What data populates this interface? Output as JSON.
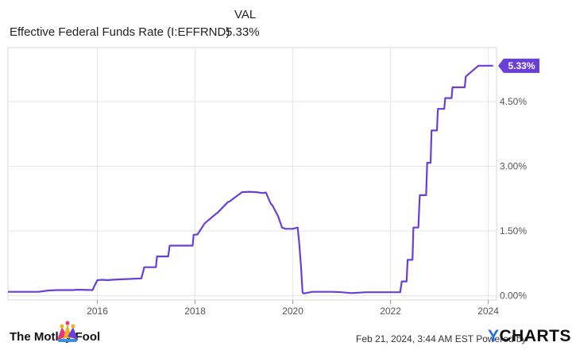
{
  "header": {
    "column_label": "VAL",
    "series_name": "Effective Federal Funds Rate (I:EFFRND)",
    "series_value": "5.33%"
  },
  "footer": {
    "brand": "The Motley Fool",
    "timestamp": "Feb 21, 2024, 3:44 AM EST Powered by",
    "provider": "CHARTS",
    "provider_mark": "Y"
  },
  "colors": {
    "line": "#6a3fd8",
    "badge": "#6a3fd8",
    "grid": "#e6e6e6",
    "plot_border": "#d9d9d9"
  },
  "chart_data": {
    "type": "line",
    "x_tick_labels": [
      "2016",
      "2018",
      "2020",
      "2022",
      "2024"
    ],
    "y_tick_labels": [
      "0.00%",
      "1.50%",
      "3.00%",
      "4.50%"
    ],
    "end_label": "5.33%",
    "xlim": [
      2014.17,
      2024.17
    ],
    "ylim": [
      -0.1,
      5.75
    ],
    "grid": true,
    "series": [
      {
        "name": "Effective Federal Funds Rate (I:EFFRND)",
        "x": [
          2014.17,
          2014.6,
          2014.8,
          2015.0,
          2015.2,
          2015.5,
          2015.6,
          2015.9,
          2016.0,
          2016.1,
          2016.2,
          2016.3,
          2016.5,
          2016.7,
          2016.9,
          2016.96,
          2017.0,
          2017.2,
          2017.22,
          2017.45,
          2017.48,
          2017.75,
          2017.8,
          2017.95,
          2017.97,
          2018.05,
          2018.2,
          2018.22,
          2018.43,
          2018.45,
          2018.67,
          2018.7,
          2018.96,
          2018.98,
          2019.1,
          2019.25,
          2019.38,
          2019.45,
          2019.55,
          2019.58,
          2019.7,
          2019.78,
          2019.85,
          2020.0,
          2020.1,
          2020.13,
          2020.17,
          2020.2,
          2020.22,
          2020.4,
          2020.8,
          2021.0,
          2021.2,
          2021.5,
          2021.8,
          2022.0,
          2022.2,
          2022.23,
          2022.33,
          2022.35,
          2022.45,
          2022.47,
          2022.57,
          2022.6,
          2022.73,
          2022.75,
          2022.82,
          2022.84,
          2022.95,
          2022.97,
          2023.1,
          2023.12,
          2023.25,
          2023.27,
          2023.52,
          2023.54,
          2023.8,
          2024.1
        ],
        "values": [
          0.09,
          0.09,
          0.09,
          0.12,
          0.13,
          0.13,
          0.14,
          0.13,
          0.36,
          0.37,
          0.36,
          0.37,
          0.38,
          0.39,
          0.4,
          0.66,
          0.66,
          0.66,
          0.91,
          0.91,
          1.16,
          1.16,
          1.16,
          1.16,
          1.41,
          1.42,
          1.68,
          1.7,
          1.9,
          1.91,
          2.17,
          2.18,
          2.4,
          2.4,
          2.41,
          2.4,
          2.38,
          2.39,
          2.13,
          2.1,
          1.84,
          1.58,
          1.55,
          1.55,
          1.58,
          1.25,
          0.65,
          0.08,
          0.05,
          0.09,
          0.09,
          0.08,
          0.06,
          0.08,
          0.08,
          0.08,
          0.08,
          0.33,
          0.33,
          0.83,
          0.83,
          1.58,
          1.58,
          2.33,
          2.33,
          3.08,
          3.08,
          3.83,
          3.83,
          4.33,
          4.33,
          4.58,
          4.58,
          4.83,
          4.83,
          5.08,
          5.33,
          5.33
        ]
      }
    ]
  }
}
